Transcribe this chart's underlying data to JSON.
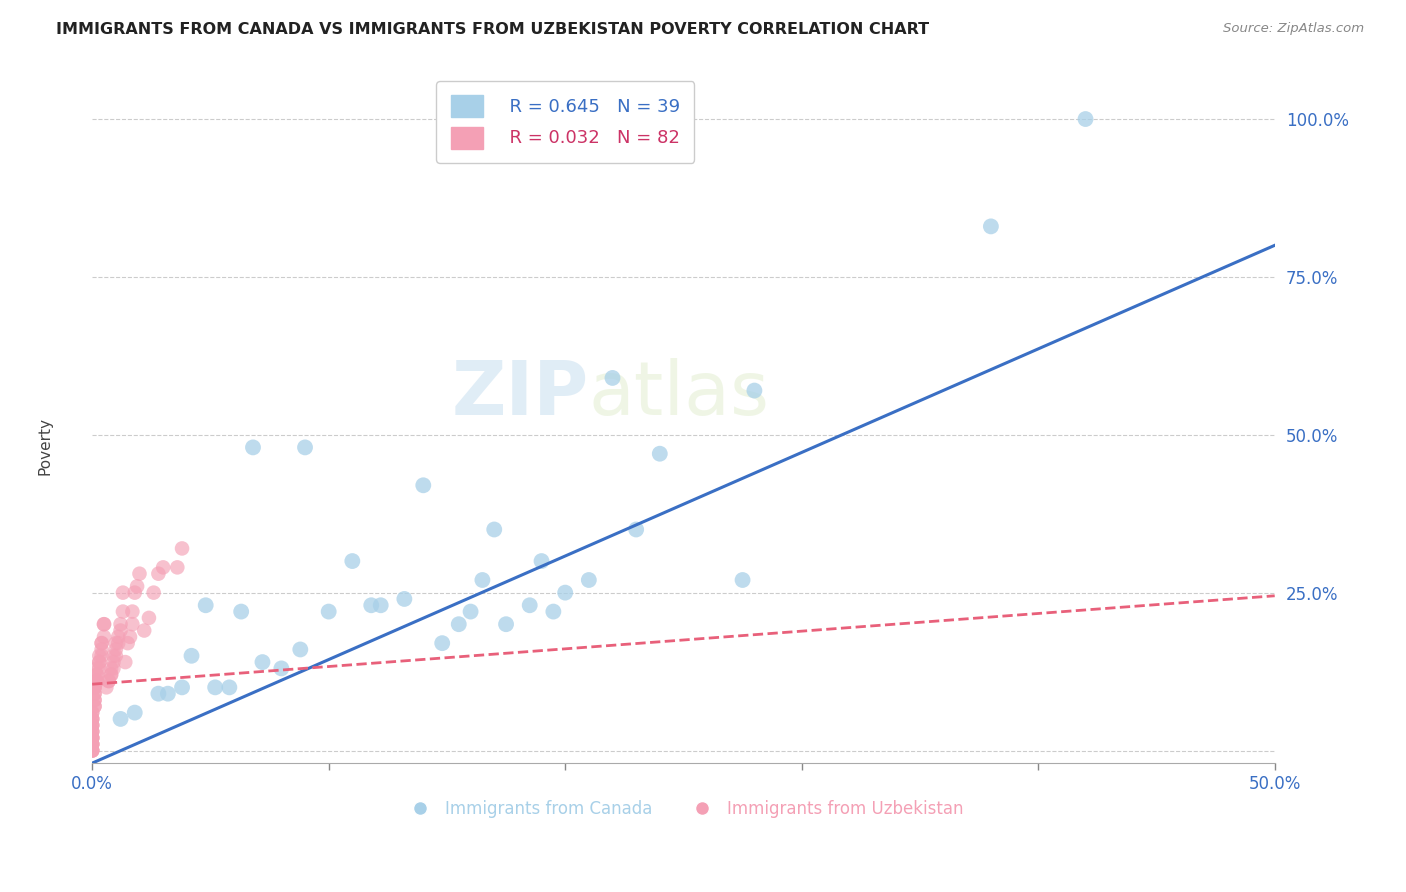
{
  "title": "IMMIGRANTS FROM CANADA VS IMMIGRANTS FROM UZBEKISTAN POVERTY CORRELATION CHART",
  "source": "Source: ZipAtlas.com",
  "xlabel_blue": "Immigrants from Canada",
  "xlabel_pink": "Immigrants from Uzbekistan",
  "ylabel": "Poverty",
  "watermark_zip": "ZIP",
  "watermark_atlas": "atlas",
  "xlim": [
    0.0,
    0.5
  ],
  "ylim": [
    -0.02,
    1.08
  ],
  "xticks": [
    0.0,
    0.1,
    0.2,
    0.3,
    0.4,
    0.5
  ],
  "xtick_labels": [
    "0.0%",
    "",
    "",
    "",
    "",
    "50.0%"
  ],
  "yticks": [
    0.0,
    0.25,
    0.5,
    0.75,
    1.0
  ],
  "ytick_labels": [
    "",
    "25.0%",
    "50.0%",
    "75.0%",
    "100.0%"
  ],
  "blue_R": "0.645",
  "blue_N": "39",
  "pink_R": "0.032",
  "pink_N": "82",
  "blue_color": "#a8d0e8",
  "pink_color": "#f4a0b5",
  "blue_line_color": "#3a6fc4",
  "pink_line_color": "#e8607a",
  "background": "#ffffff",
  "grid_color": "#cccccc",
  "blue_points_x": [
    0.42,
    0.38,
    0.28,
    0.275,
    0.24,
    0.23,
    0.22,
    0.21,
    0.2,
    0.195,
    0.19,
    0.185,
    0.175,
    0.17,
    0.165,
    0.16,
    0.155,
    0.148,
    0.14,
    0.132,
    0.122,
    0.118,
    0.11,
    0.1,
    0.09,
    0.088,
    0.08,
    0.072,
    0.068,
    0.063,
    0.058,
    0.052,
    0.048,
    0.042,
    0.038,
    0.032,
    0.028,
    0.018,
    0.012
  ],
  "blue_points_y": [
    1.0,
    0.83,
    0.57,
    0.27,
    0.47,
    0.35,
    0.59,
    0.27,
    0.25,
    0.22,
    0.3,
    0.23,
    0.2,
    0.35,
    0.27,
    0.22,
    0.2,
    0.17,
    0.42,
    0.24,
    0.23,
    0.23,
    0.3,
    0.22,
    0.48,
    0.16,
    0.13,
    0.14,
    0.48,
    0.22,
    0.1,
    0.1,
    0.23,
    0.15,
    0.1,
    0.09,
    0.09,
    0.06,
    0.05
  ],
  "pink_points_x": [
    0.038,
    0.036,
    0.03,
    0.028,
    0.026,
    0.024,
    0.022,
    0.02,
    0.019,
    0.018,
    0.017,
    0.017,
    0.016,
    0.015,
    0.014,
    0.013,
    0.013,
    0.012,
    0.012,
    0.011,
    0.011,
    0.01,
    0.01,
    0.01,
    0.009,
    0.009,
    0.009,
    0.008,
    0.008,
    0.008,
    0.007,
    0.007,
    0.006,
    0.005,
    0.005,
    0.005,
    0.004,
    0.004,
    0.004,
    0.004,
    0.003,
    0.003,
    0.003,
    0.003,
    0.002,
    0.002,
    0.002,
    0.002,
    0.002,
    0.001,
    0.001,
    0.001,
    0.001,
    0.001,
    0.001,
    0.001,
    0.001,
    0.001,
    0.001,
    0.0,
    0.0,
    0.0,
    0.0,
    0.0,
    0.0,
    0.0,
    0.0,
    0.0,
    0.0,
    0.0,
    0.0,
    0.0,
    0.0,
    0.0,
    0.0,
    0.0,
    0.0,
    0.0,
    0.0,
    0.0,
    0.0,
    0.0
  ],
  "pink_points_y": [
    0.32,
    0.29,
    0.29,
    0.28,
    0.25,
    0.21,
    0.19,
    0.28,
    0.26,
    0.25,
    0.22,
    0.2,
    0.18,
    0.17,
    0.14,
    0.25,
    0.22,
    0.2,
    0.19,
    0.18,
    0.17,
    0.17,
    0.16,
    0.15,
    0.15,
    0.14,
    0.13,
    0.13,
    0.12,
    0.12,
    0.11,
    0.11,
    0.1,
    0.2,
    0.2,
    0.18,
    0.17,
    0.17,
    0.16,
    0.15,
    0.15,
    0.14,
    0.14,
    0.13,
    0.13,
    0.12,
    0.12,
    0.11,
    0.11,
    0.11,
    0.1,
    0.1,
    0.1,
    0.09,
    0.09,
    0.08,
    0.08,
    0.07,
    0.07,
    0.06,
    0.06,
    0.05,
    0.05,
    0.05,
    0.04,
    0.04,
    0.04,
    0.03,
    0.03,
    0.03,
    0.02,
    0.02,
    0.02,
    0.02,
    0.01,
    0.01,
    0.01,
    0.01,
    0.0,
    0.0,
    0.0,
    0.0
  ],
  "blue_line_x0": 0.0,
  "blue_line_y0": -0.02,
  "blue_line_x1": 0.5,
  "blue_line_y1": 0.8,
  "pink_line_x0": 0.0,
  "pink_line_y0": 0.105,
  "pink_line_x1": 0.5,
  "pink_line_y1": 0.245
}
